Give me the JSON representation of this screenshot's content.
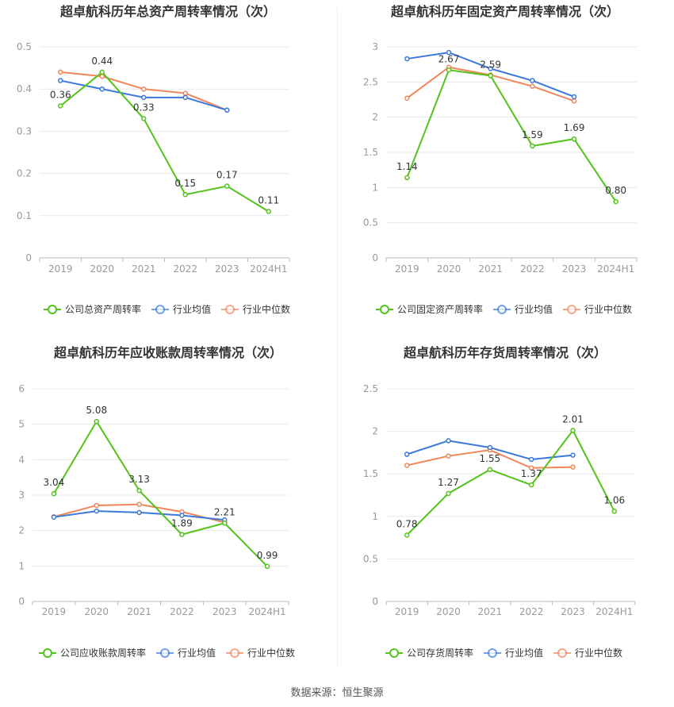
{
  "source": {
    "label": "数据来源：",
    "value": "恒生聚源"
  },
  "legend": {
    "industry_avg": "行业均值",
    "industry_median": "行业中位数"
  },
  "colors": {
    "company": "#52c41a",
    "industry_avg": "#3a78dc",
    "industry_median": "#f0865a",
    "grid": "#e8e8e8",
    "axis": "#999999"
  },
  "chart_data": [
    {
      "type": "line",
      "title": "超卓航科历年总资产周转率情况（次）",
      "categories": [
        "2019",
        "2020",
        "2021",
        "2022",
        "2023",
        "2024H1"
      ],
      "ylim": [
        0,
        0.5
      ],
      "yticks": [
        "0",
        "0.1",
        "0.2",
        "0.3",
        "0.4",
        "0.5"
      ],
      "grid": true,
      "legend_position": "bottom",
      "series": [
        {
          "name": "公司总资产周转率",
          "key": "company",
          "values": [
            0.36,
            0.44,
            0.33,
            0.15,
            0.17,
            0.11
          ],
          "labels": [
            "0.36",
            "0.44",
            "0.33",
            "0.15",
            "0.17",
            "0.11"
          ]
        },
        {
          "name": "行业均值",
          "key": "industry_avg",
          "values": [
            0.42,
            0.4,
            0.38,
            0.38,
            0.35,
            null
          ]
        },
        {
          "name": "行业中位数",
          "key": "industry_median",
          "values": [
            0.44,
            0.43,
            0.4,
            0.39,
            0.35,
            null
          ]
        }
      ]
    },
    {
      "type": "line",
      "title": "超卓航科历年固定资产周转率情况（次）",
      "categories": [
        "2019",
        "2020",
        "2021",
        "2022",
        "2023",
        "2024H1"
      ],
      "ylim": [
        0,
        3
      ],
      "yticks": [
        "0",
        "0.5",
        "1",
        "1.5",
        "2",
        "2.5",
        "3"
      ],
      "grid": true,
      "legend_position": "bottom",
      "series": [
        {
          "name": "公司固定资产周转率",
          "key": "company",
          "values": [
            1.14,
            2.67,
            2.59,
            1.59,
            1.69,
            0.8
          ],
          "labels": [
            "1.14",
            "2.67",
            "2.59",
            "1.59",
            "1.69",
            "0.80"
          ]
        },
        {
          "name": "行业均值",
          "key": "industry_avg",
          "values": [
            2.83,
            2.92,
            2.69,
            2.52,
            2.29,
            null
          ]
        },
        {
          "name": "行业中位数",
          "key": "industry_median",
          "values": [
            2.27,
            2.71,
            2.6,
            2.44,
            2.23,
            null
          ]
        }
      ]
    },
    {
      "type": "line",
      "title": "超卓航科历年应收账款周转率情况（次）",
      "categories": [
        "2019",
        "2020",
        "2021",
        "2022",
        "2023",
        "2024H1"
      ],
      "ylim": [
        0,
        6
      ],
      "yticks": [
        "0",
        "1",
        "2",
        "3",
        "4",
        "5",
        "6"
      ],
      "grid": true,
      "legend_position": "bottom",
      "series": [
        {
          "name": "公司应收账款周转率",
          "key": "company",
          "values": [
            3.04,
            5.08,
            3.13,
            1.89,
            2.21,
            0.99
          ],
          "labels": [
            "3.04",
            "5.08",
            "3.13",
            "1.89",
            "2.21",
            "0.99"
          ]
        },
        {
          "name": "行业均值",
          "key": "industry_avg",
          "values": [
            2.38,
            2.55,
            2.51,
            2.43,
            2.3,
            null
          ]
        },
        {
          "name": "行业中位数",
          "key": "industry_median",
          "values": [
            2.39,
            2.71,
            2.74,
            2.53,
            2.23,
            null
          ]
        }
      ]
    },
    {
      "type": "line",
      "title": "超卓航科历年存货周转率情况（次）",
      "categories": [
        "2019",
        "2020",
        "2021",
        "2022",
        "2023",
        "2024H1"
      ],
      "ylim": [
        0,
        2.5
      ],
      "yticks": [
        "0",
        "0.5",
        "1",
        "1.5",
        "2",
        "2.5"
      ],
      "grid": true,
      "legend_position": "bottom",
      "series": [
        {
          "name": "公司存货周转率",
          "key": "company",
          "values": [
            0.78,
            1.27,
            1.55,
            1.37,
            2.01,
            1.06
          ],
          "labels": [
            "0.78",
            "1.27",
            "1.55",
            "1.37",
            "2.01",
            "1.06"
          ]
        },
        {
          "name": "行业均值",
          "key": "industry_avg",
          "values": [
            1.73,
            1.89,
            1.81,
            1.67,
            1.72,
            null
          ]
        },
        {
          "name": "行业中位数",
          "key": "industry_median",
          "values": [
            1.6,
            1.71,
            1.78,
            1.57,
            1.58,
            null
          ]
        }
      ]
    }
  ]
}
